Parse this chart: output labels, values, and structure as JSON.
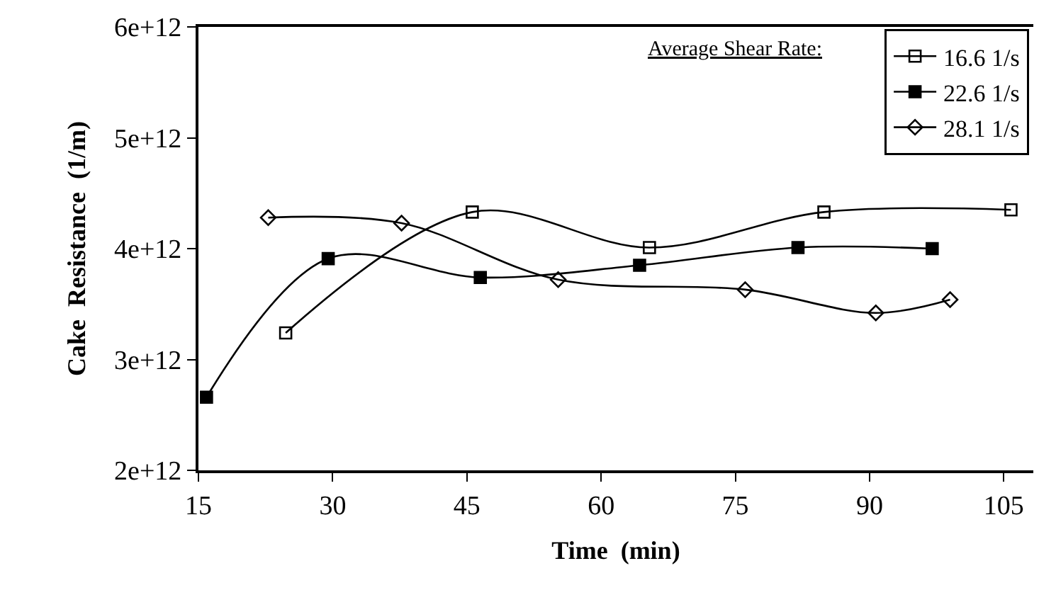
{
  "chart_data": {
    "type": "line",
    "xlabel": "Time  (min)",
    "ylabel": "Cake  Resistance  (1/m)",
    "legend_title": "Average Shear Rate:",
    "xlim": [
      15,
      108.3
    ],
    "xticks": [
      15,
      30,
      45,
      60,
      75,
      90,
      105
    ],
    "ylim": [
      2000000000000.0,
      6000000000000.0
    ],
    "yticks": [
      {
        "value": 2000000000000.0,
        "label": "2e+12"
      },
      {
        "value": 3000000000000.0,
        "label": "3e+12"
      },
      {
        "value": 4000000000000.0,
        "label": "4e+12"
      },
      {
        "value": 5000000000000.0,
        "label": "5e+12"
      },
      {
        "value": 6000000000000.0,
        "label": "6e+12"
      }
    ],
    "legend": "top right",
    "series": [
      {
        "name": "16.6 1/s",
        "color": "#000000",
        "marker": "square-open",
        "x": [
          24.75,
          45.6,
          65.4,
          84.9,
          105.8
        ],
        "values": [
          3240000000000.0,
          4330000000000.0,
          4010000000000.0,
          4330000000000.0,
          4350000000000.0
        ]
      },
      {
        "name": "22.6 1/s",
        "color": "#000000",
        "marker": "square",
        "x": [
          15.9,
          29.5,
          46.5,
          64.3,
          82.0,
          97.0
        ],
        "values": [
          2660000000000.0,
          3910000000000.0,
          3740000000000.0,
          3850000000000.0,
          4010000000000.0,
          4000000000000.0
        ]
      },
      {
        "name": "28.1 1/s",
        "color": "#000000",
        "marker": "diamond-open",
        "x": [
          22.8,
          37.7,
          55.2,
          76.1,
          90.7,
          99.0
        ],
        "values": [
          4280000000000.0,
          4230000000000.0,
          3720000000000.0,
          3630000000000.0,
          3420000000000.0,
          3540000000000.0
        ]
      }
    ]
  }
}
